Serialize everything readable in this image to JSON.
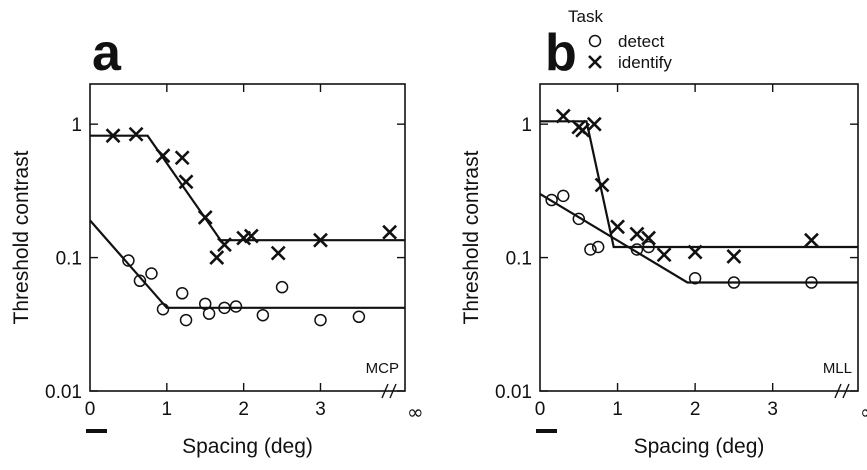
{
  "chart_data": [
    {
      "type": "scatter",
      "panel_label": "a",
      "observer": "MCP",
      "xlabel": "Spacing (deg)",
      "ylabel": "Threshold contrast",
      "x_ticks": [
        "0",
        "1",
        "2",
        "3"
      ],
      "x_inf_label": "∞",
      "y_ticks": [
        "0.01",
        "0.1",
        "1"
      ],
      "y_scale": "log",
      "xlim": [
        0,
        4.1
      ],
      "ylim": [
        0.01,
        2.0
      ],
      "series": [
        {
          "name": "detect",
          "marker": "circle",
          "x": [
            0.5,
            0.65,
            0.8,
            0.95,
            1.2,
            1.25,
            1.5,
            1.55,
            1.75,
            1.9,
            2.25,
            2.5,
            3.0,
            3.5
          ],
          "y": [
            0.095,
            0.067,
            0.076,
            0.041,
            0.054,
            0.034,
            0.045,
            0.038,
            0.042,
            0.043,
            0.037,
            0.06,
            0.034,
            0.036
          ],
          "fit": {
            "x": [
              0.0,
              1.0,
              4.1
            ],
            "y": [
              0.19,
              0.042,
              0.042
            ]
          }
        },
        {
          "name": "identify",
          "marker": "x",
          "x": [
            0.3,
            0.6,
            0.95,
            1.2,
            1.25,
            1.5,
            1.65,
            1.75,
            2.0,
            2.1,
            2.45,
            3.0,
            3.9
          ],
          "y": [
            0.82,
            0.84,
            0.58,
            0.56,
            0.37,
            0.2,
            0.1,
            0.125,
            0.14,
            0.145,
            0.108,
            0.135,
            0.155
          ],
          "fit": {
            "x": [
              0.0,
              0.75,
              1.7,
              4.1
            ],
            "y": [
              0.82,
              0.82,
              0.135,
              0.135
            ]
          }
        }
      ]
    },
    {
      "type": "scatter",
      "panel_label": "b",
      "observer": "MLL",
      "xlabel": "Spacing (deg)",
      "ylabel": "Threshold contrast",
      "x_ticks": [
        "0",
        "1",
        "2",
        "3"
      ],
      "x_inf_label": "∞",
      "y_ticks": [
        "0.01",
        "0.1",
        "1"
      ],
      "y_scale": "log",
      "xlim": [
        0,
        4.1
      ],
      "ylim": [
        0.01,
        2.0
      ],
      "series": [
        {
          "name": "detect",
          "marker": "circle",
          "x": [
            0.15,
            0.3,
            0.5,
            0.65,
            0.75,
            1.25,
            1.4,
            2.0,
            2.5,
            3.5
          ],
          "y": [
            0.27,
            0.29,
            0.195,
            0.115,
            0.12,
            0.115,
            0.12,
            0.07,
            0.065,
            0.065
          ],
          "fit": {
            "x": [
              0.0,
              1.9,
              4.1
            ],
            "y": [
              0.3,
              0.065,
              0.065
            ]
          }
        },
        {
          "name": "identify",
          "marker": "x",
          "x": [
            0.3,
            0.5,
            0.55,
            0.7,
            0.8,
            1.0,
            1.25,
            1.4,
            1.6,
            2.0,
            2.5,
            3.5
          ],
          "y": [
            1.15,
            0.95,
            0.9,
            1.0,
            0.35,
            0.17,
            0.15,
            0.14,
            0.105,
            0.11,
            0.102,
            0.135
          ],
          "fit": {
            "x": [
              0.0,
              0.6,
              0.95,
              4.1
            ],
            "y": [
              1.05,
              1.05,
              0.12,
              0.12
            ]
          }
        }
      ]
    }
  ],
  "legend": {
    "title": "Task",
    "entries": [
      {
        "marker": "circle",
        "label": "detect"
      },
      {
        "marker": "x",
        "label": "identify"
      }
    ]
  }
}
